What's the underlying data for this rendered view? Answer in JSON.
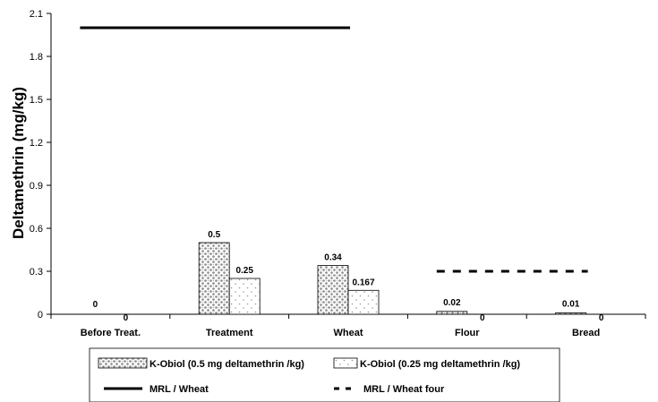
{
  "chart_data": {
    "type": "bar",
    "title": "",
    "xlabel": "",
    "ylabel": "Deltamethrin (mg/kg)",
    "ylim": [
      0,
      2.1
    ],
    "yticks": [
      "0",
      "0.3",
      "0.6",
      "0.9",
      "1.2",
      "1.5",
      "1.8",
      "2.1"
    ],
    "categories": [
      "Before Treat.",
      "Treatment",
      "Wheat",
      "Flour",
      "Bread"
    ],
    "series": [
      {
        "name": "K-Obiol (0.5 mg deltamethrin /kg)",
        "values": [
          0,
          0.5,
          0.34,
          0.02,
          0.01
        ],
        "labels": [
          "0",
          "0.5",
          "0.34",
          "0.02",
          "0.01"
        ],
        "pattern": "dense-dots"
      },
      {
        "name": "K-Obiol (0.25 mg deltamethrin /kg)",
        "values": [
          0,
          0.25,
          0.167,
          0,
          0
        ],
        "labels": [
          "0",
          "0.25",
          "0.167",
          "0",
          "0"
        ],
        "pattern": "sparse-dots"
      }
    ],
    "reference_lines": [
      {
        "name": "MRL / Wheat",
        "value": 2.0,
        "x_from": 0,
        "x_to": 2,
        "style": "solid"
      },
      {
        "name": "MRL / Wheat four",
        "value": 0.3,
        "x_from": 3,
        "x_to": 4,
        "style": "dashed"
      }
    ],
    "grid": false,
    "legend_position": "bottom",
    "colors": {
      "bar_stroke": "#000000",
      "dots": "#8a8a8a",
      "background": "#ffffff"
    }
  }
}
